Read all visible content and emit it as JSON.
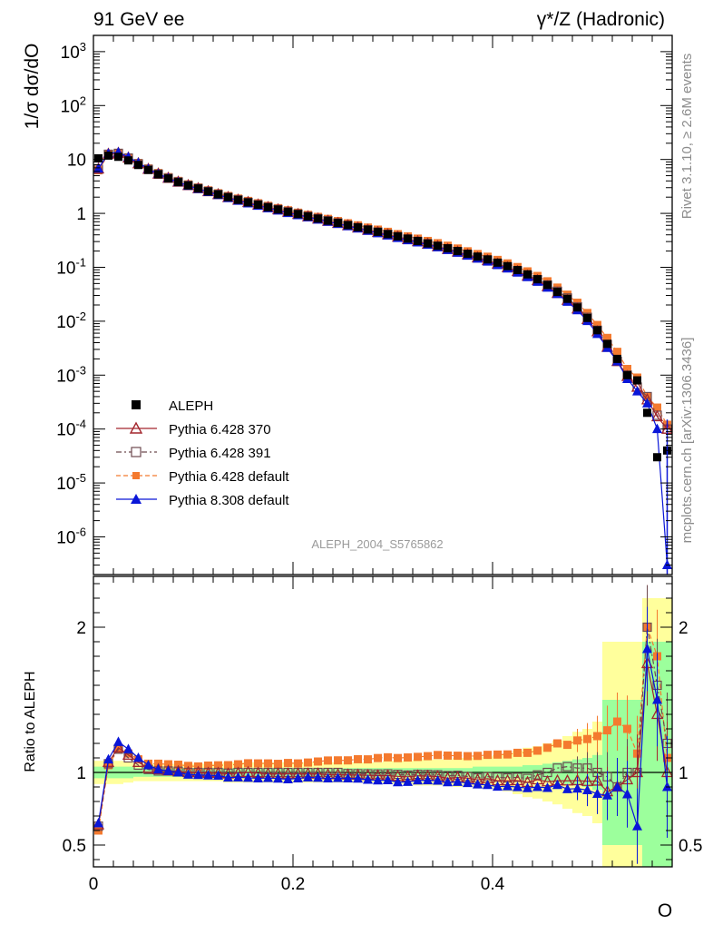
{
  "header": {
    "left_label": "91 GeV ee",
    "right_label": "γ*/Z (Hadronic)"
  },
  "side_text": {
    "rivet": "Rivet 3.1.10, ≥ 2.6M events",
    "mcplots": "mcplots.cern.ch [arXiv:1306.3436]"
  },
  "watermark": "ALEPH_2004_S5765862",
  "colors": {
    "data": "#000000",
    "pythia6_370": "#a3262d",
    "pythia6_391": "#6e4a4f",
    "pythia6_default": "#f47a2f",
    "pythia8_default": "#0a16d8",
    "band_green": "#9cff9c",
    "band_yellow": "#ffff9c"
  },
  "chart_data": [
    {
      "type": "scatter",
      "panel": "main",
      "ylabel": "1/σ  dσ/dO",
      "xlabel": "O",
      "xlim": [
        0,
        0.58
      ],
      "ylim": [
        2e-07,
        2000
      ],
      "yscale": "log",
      "y_tick_labels": [
        "10^-6",
        "10^-5",
        "10^-4",
        "10^-3",
        "10^-2",
        "10^-1",
        "1",
        "10",
        "10^2",
        "10^3"
      ],
      "x_tick_labels": [
        "0",
        "0.2",
        "0.4"
      ],
      "legend_position": "bottom-left",
      "x": [
        0.005,
        0.015,
        0.025,
        0.035,
        0.045,
        0.055,
        0.065,
        0.075,
        0.085,
        0.095,
        0.105,
        0.115,
        0.125,
        0.135,
        0.145,
        0.155,
        0.165,
        0.175,
        0.185,
        0.195,
        0.205,
        0.215,
        0.225,
        0.235,
        0.245,
        0.255,
        0.265,
        0.275,
        0.285,
        0.295,
        0.305,
        0.315,
        0.325,
        0.335,
        0.345,
        0.355,
        0.365,
        0.375,
        0.385,
        0.395,
        0.405,
        0.415,
        0.425,
        0.435,
        0.445,
        0.455,
        0.465,
        0.475,
        0.485,
        0.495,
        0.505,
        0.515,
        0.525,
        0.535,
        0.545,
        0.555,
        0.565,
        0.575
      ],
      "series": [
        {
          "name": "ALEPH",
          "marker": "square-filled",
          "values": [
            10.5,
            11.8,
            11.2,
            9.6,
            7.9,
            6.4,
            5.3,
            4.45,
            3.8,
            3.3,
            2.9,
            2.55,
            2.25,
            2.0,
            1.78,
            1.6,
            1.45,
            1.3,
            1.18,
            1.07,
            0.97,
            0.88,
            0.8,
            0.73,
            0.665,
            0.605,
            0.55,
            0.5,
            0.455,
            0.412,
            0.375,
            0.34,
            0.307,
            0.277,
            0.25,
            0.225,
            0.2,
            0.178,
            0.158,
            0.14,
            0.122,
            0.105,
            0.089,
            0.074,
            0.06,
            0.047,
            0.035,
            0.026,
            0.018,
            0.0115,
            0.0068,
            0.0038,
            0.002,
            0.001,
            0.0008,
            0.0002,
            3e-05,
            4e-05
          ]
        },
        {
          "name": "Pythia 6.428 370",
          "marker": "triangle-open",
          "values": [
            6.7,
            12.6,
            13.1,
            10.7,
            8.4,
            6.6,
            5.4,
            4.5,
            3.82,
            3.3,
            2.9,
            2.54,
            2.24,
            1.98,
            1.77,
            1.6,
            1.44,
            1.29,
            1.17,
            1.06,
            0.96,
            0.87,
            0.79,
            0.72,
            0.655,
            0.595,
            0.54,
            0.49,
            0.445,
            0.403,
            0.365,
            0.33,
            0.3,
            0.27,
            0.243,
            0.216,
            0.193,
            0.171,
            0.15,
            0.134,
            0.115,
            0.099,
            0.084,
            0.069,
            0.057,
            0.044,
            0.033,
            0.0245,
            0.017,
            0.0108,
            0.0064,
            0.0033,
            0.0018,
            0.00095,
            0.0006,
            0.00035,
            0.00017,
            0.0001
          ]
        },
        {
          "name": "Pythia 6.428 391",
          "marker": "square-open",
          "values": [
            6.6,
            12.5,
            13.0,
            10.6,
            8.3,
            6.55,
            5.35,
            4.5,
            3.83,
            3.3,
            2.9,
            2.55,
            2.25,
            1.99,
            1.78,
            1.6,
            1.45,
            1.3,
            1.18,
            1.07,
            0.97,
            0.88,
            0.8,
            0.73,
            0.665,
            0.6,
            0.545,
            0.495,
            0.45,
            0.408,
            0.37,
            0.334,
            0.303,
            0.273,
            0.246,
            0.22,
            0.196,
            0.173,
            0.152,
            0.136,
            0.118,
            0.101,
            0.086,
            0.071,
            0.059,
            0.047,
            0.036,
            0.027,
            0.0185,
            0.0118,
            0.0068,
            0.0037,
            0.0018,
            0.001,
            0.0006,
            0.0004,
            0.00018,
            0.0001
          ]
        },
        {
          "name": "Pythia 6.428 default",
          "marker": "square-filled",
          "values": [
            6.3,
            12.4,
            13.0,
            10.8,
            8.6,
            6.8,
            5.6,
            4.7,
            4.0,
            3.45,
            3.02,
            2.67,
            2.36,
            2.1,
            1.88,
            1.7,
            1.54,
            1.38,
            1.25,
            1.14,
            1.03,
            0.94,
            0.86,
            0.79,
            0.72,
            0.655,
            0.6,
            0.545,
            0.5,
            0.455,
            0.412,
            0.375,
            0.34,
            0.308,
            0.28,
            0.251,
            0.223,
            0.198,
            0.176,
            0.157,
            0.137,
            0.118,
            0.101,
            0.084,
            0.069,
            0.055,
            0.042,
            0.031,
            0.022,
            0.0142,
            0.0085,
            0.0049,
            0.0027,
            0.0013,
            0.0009,
            0.0004,
            0.00025,
            0.00012
          ]
        },
        {
          "name": "Pythia 8.308 default",
          "marker": "triangle-filled",
          "values": [
            6.8,
            12.9,
            13.6,
            11.1,
            8.7,
            6.7,
            5.4,
            4.5,
            3.8,
            3.25,
            2.85,
            2.5,
            2.2,
            1.93,
            1.72,
            1.54,
            1.39,
            1.25,
            1.13,
            1.02,
            0.93,
            0.85,
            0.77,
            0.7,
            0.64,
            0.58,
            0.527,
            0.475,
            0.43,
            0.39,
            0.35,
            0.318,
            0.29,
            0.262,
            0.236,
            0.21,
            0.187,
            0.165,
            0.145,
            0.128,
            0.11,
            0.095,
            0.08,
            0.066,
            0.054,
            0.042,
            0.032,
            0.023,
            0.016,
            0.0101,
            0.0058,
            0.0032,
            0.0018,
            0.00085,
            0.0005,
            0.0003,
            0.0001,
            3e-07
          ]
        }
      ]
    },
    {
      "type": "scatter",
      "panel": "ratio",
      "ylabel": "Ratio to ALEPH",
      "xlabel": "O",
      "xlim": [
        0,
        0.58
      ],
      "ylim": [
        0.35,
        2.35
      ],
      "y_tick_labels": [
        "0.5",
        "1",
        "2"
      ],
      "x_tick_labels": [
        "0",
        "0.2",
        "0.4"
      ],
      "x": [
        0.005,
        0.015,
        0.025,
        0.035,
        0.045,
        0.055,
        0.065,
        0.075,
        0.085,
        0.095,
        0.105,
        0.115,
        0.125,
        0.135,
        0.145,
        0.155,
        0.165,
        0.175,
        0.185,
        0.195,
        0.205,
        0.215,
        0.225,
        0.235,
        0.245,
        0.255,
        0.265,
        0.275,
        0.285,
        0.295,
        0.305,
        0.315,
        0.325,
        0.335,
        0.345,
        0.355,
        0.365,
        0.375,
        0.385,
        0.395,
        0.405,
        0.415,
        0.425,
        0.435,
        0.445,
        0.455,
        0.465,
        0.475,
        0.485,
        0.495,
        0.505,
        0.515,
        0.525,
        0.535,
        0.545,
        0.555,
        0.565,
        0.575
      ],
      "band_green_halfwidth": [
        0.04,
        0.04,
        0.04,
        0.04,
        0.03,
        0.03,
        0.03,
        0.03,
        0.03,
        0.03,
        0.03,
        0.03,
        0.03,
        0.03,
        0.03,
        0.03,
        0.03,
        0.03,
        0.03,
        0.03,
        0.03,
        0.03,
        0.03,
        0.03,
        0.03,
        0.03,
        0.03,
        0.03,
        0.03,
        0.03,
        0.03,
        0.03,
        0.03,
        0.03,
        0.03,
        0.03,
        0.03,
        0.03,
        0.04,
        0.04,
        0.04,
        0.04,
        0.04,
        0.05,
        0.05,
        0.06,
        0.07,
        0.08,
        0.09,
        0.1,
        0.12,
        0.5,
        0.5,
        0.5,
        0.5,
        0.9,
        0.9,
        0.9
      ],
      "band_yellow_halfwidth": [
        0.08,
        0.08,
        0.08,
        0.07,
        0.06,
        0.06,
        0.06,
        0.06,
        0.06,
        0.06,
        0.06,
        0.06,
        0.06,
        0.07,
        0.07,
        0.07,
        0.07,
        0.07,
        0.07,
        0.07,
        0.07,
        0.07,
        0.07,
        0.07,
        0.07,
        0.07,
        0.07,
        0.07,
        0.07,
        0.08,
        0.08,
        0.08,
        0.09,
        0.09,
        0.09,
        0.09,
        0.1,
        0.1,
        0.11,
        0.11,
        0.12,
        0.13,
        0.15,
        0.17,
        0.18,
        0.2,
        0.22,
        0.25,
        0.28,
        0.3,
        0.35,
        0.9,
        0.9,
        0.9,
        0.9,
        1.2,
        1.2,
        1.2
      ],
      "series": [
        {
          "name": "Pythia 6.428 370",
          "marker": "triangle-open",
          "values": [
            0.64,
            1.07,
            1.17,
            1.12,
            1.07,
            1.03,
            1.02,
            1.01,
            1.005,
            1.0,
            1.0,
            0.995,
            0.995,
            0.99,
            0.995,
            1.0,
            0.995,
            0.99,
            0.99,
            0.99,
            0.99,
            0.99,
            0.99,
            0.985,
            0.985,
            0.983,
            0.982,
            0.98,
            0.978,
            0.978,
            0.973,
            0.97,
            0.977,
            0.975,
            0.972,
            0.96,
            0.965,
            0.961,
            0.949,
            0.957,
            0.943,
            0.943,
            0.944,
            0.932,
            0.95,
            0.936,
            0.943,
            0.942,
            0.944,
            0.939,
            0.941,
            0.868,
            0.9,
            0.95,
            1.0,
            1.75,
            1.4,
            1.0
          ]
        },
        {
          "name": "Pythia 6.428 391",
          "marker": "square-open",
          "values": [
            0.63,
            1.06,
            1.16,
            1.1,
            1.05,
            1.02,
            1.01,
            1.01,
            1.008,
            1.0,
            1.0,
            1.0,
            1.0,
            0.995,
            1.0,
            1.0,
            1.0,
            1.0,
            1.0,
            1.0,
            1.0,
            1.0,
            1.0,
            1.0,
            1.0,
            0.992,
            0.991,
            0.99,
            0.989,
            0.99,
            0.987,
            0.982,
            0.987,
            0.986,
            0.984,
            0.978,
            0.98,
            0.972,
            0.962,
            0.971,
            0.967,
            0.962,
            0.966,
            0.959,
            0.983,
            1.0,
            1.03,
            1.04,
            1.03,
            1.03,
            1.0,
            0.97,
            0.9,
            1.0,
            1.0,
            2.0,
            1.6,
            1.2
          ]
        },
        {
          "name": "Pythia 6.428 default",
          "marker": "square-filled",
          "values": [
            0.6,
            1.05,
            1.16,
            1.13,
            1.09,
            1.06,
            1.06,
            1.056,
            1.053,
            1.045,
            1.041,
            1.047,
            1.049,
            1.05,
            1.056,
            1.063,
            1.062,
            1.062,
            1.059,
            1.065,
            1.062,
            1.068,
            1.075,
            1.082,
            1.083,
            1.083,
            1.091,
            1.09,
            1.099,
            1.104,
            1.099,
            1.103,
            1.107,
            1.112,
            1.12,
            1.116,
            1.115,
            1.112,
            1.114,
            1.121,
            1.123,
            1.124,
            1.135,
            1.135,
            1.15,
            1.17,
            1.2,
            1.19,
            1.22,
            1.23,
            1.25,
            1.29,
            1.35,
            1.3,
            1.13,
            2.0,
            1.8,
            1.1
          ]
        },
        {
          "name": "Pythia 8.308 default",
          "marker": "triangle-filled",
          "values": [
            0.65,
            1.09,
            1.21,
            1.16,
            1.1,
            1.05,
            1.02,
            1.01,
            1.0,
            0.985,
            0.983,
            0.98,
            0.978,
            0.965,
            0.966,
            0.963,
            0.959,
            0.962,
            0.958,
            0.953,
            0.959,
            0.966,
            0.963,
            0.959,
            0.962,
            0.959,
            0.958,
            0.95,
            0.945,
            0.947,
            0.933,
            0.935,
            0.945,
            0.946,
            0.944,
            0.933,
            0.935,
            0.927,
            0.918,
            0.914,
            0.902,
            0.905,
            0.899,
            0.892,
            0.9,
            0.894,
            0.914,
            0.885,
            0.889,
            0.878,
            0.853,
            0.842,
            0.9,
            0.85,
            0.63,
            1.85,
            1.5,
            0.9
          ]
        }
      ]
    }
  ]
}
